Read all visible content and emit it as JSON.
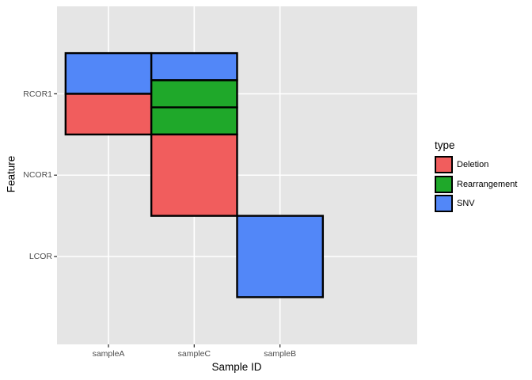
{
  "chart_data": {
    "type": "heatmap",
    "title": "",
    "xlabel": "Sample ID",
    "ylabel": "Feature",
    "x_categories": [
      "sampleA",
      "sampleC",
      "sampleB"
    ],
    "y_categories": [
      "RCOR1",
      "NCOR1",
      "LCOR"
    ],
    "cells": [
      {
        "sample": "sampleA",
        "feature": "RCOR1",
        "types": [
          "SNV",
          "Deletion"
        ]
      },
      {
        "sample": "sampleC",
        "feature": "RCOR1",
        "types": [
          "SNV",
          "Rearrangement",
          "Rearrangement"
        ]
      },
      {
        "sample": "sampleC",
        "feature": "NCOR1",
        "types": [
          "Deletion"
        ]
      },
      {
        "sample": "sampleB",
        "feature": "LCOR",
        "types": [
          "SNV"
        ]
      }
    ],
    "colors": {
      "Deletion": "#F15D5D",
      "Rearrangement": "#1FA82A",
      "SNV": "#5287F8"
    },
    "legend": {
      "title": "type",
      "position": "right",
      "entries": [
        "Deletion",
        "Rearrangement",
        "SNV"
      ]
    },
    "style": {
      "panel_background": "#E5E5E5",
      "gridline_color": "#FFFFFF",
      "tile_border_color": "#000000",
      "axis_text_color": "#4D4D4D",
      "tick_color": "#333333"
    },
    "layout_hints": {
      "grid": "major-on",
      "legend_position": "right",
      "tiles_stacked_within_cell": true
    }
  }
}
